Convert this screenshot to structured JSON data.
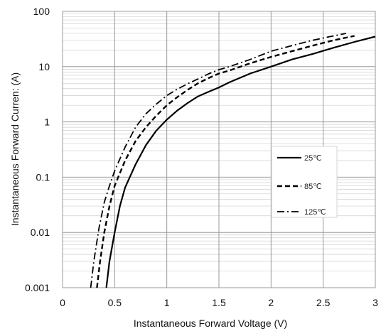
{
  "chart_data": {
    "type": "line",
    "xlabel": "Instantaneous Forward Voltage (V)",
    "ylabel": "Instantaneous Forward Curren: (A)",
    "xlim": [
      0,
      3
    ],
    "ylim": [
      0.001,
      100
    ],
    "yscale": "log",
    "grid": true,
    "legend_position": "right",
    "x_ticks": [
      {
        "value": 0,
        "label": "0"
      },
      {
        "value": 0.5,
        "label": "0.5"
      },
      {
        "value": 1,
        "label": "1"
      },
      {
        "value": 1.5,
        "label": "1.5"
      },
      {
        "value": 2,
        "label": "2"
      },
      {
        "value": 2.5,
        "label": "2.5"
      },
      {
        "value": 3,
        "label": "3"
      }
    ],
    "y_ticks": [
      {
        "value": 0.001,
        "label": "0.001"
      },
      {
        "value": 0.01,
        "label": "0.01"
      },
      {
        "value": 0.1,
        "label": "0.1"
      },
      {
        "value": 1,
        "label": "1"
      },
      {
        "value": 10,
        "label": "10"
      },
      {
        "value": 100,
        "label": "100"
      }
    ],
    "series": [
      {
        "name": "25℃",
        "dash": "solid",
        "color": "#000000",
        "points": [
          [
            0.42,
            0.001
          ],
          [
            0.45,
            0.003
          ],
          [
            0.5,
            0.01
          ],
          [
            0.55,
            0.03
          ],
          [
            0.6,
            0.065
          ],
          [
            0.7,
            0.17
          ],
          [
            0.8,
            0.38
          ],
          [
            0.9,
            0.7
          ],
          [
            1.0,
            1.1
          ],
          [
            1.1,
            1.6
          ],
          [
            1.2,
            2.2
          ],
          [
            1.3,
            2.9
          ],
          [
            1.4,
            3.5
          ],
          [
            1.5,
            4.2
          ],
          [
            1.6,
            5.2
          ],
          [
            1.8,
            7.5
          ],
          [
            2.0,
            10
          ],
          [
            2.2,
            13.5
          ],
          [
            2.4,
            17
          ],
          [
            2.6,
            22
          ],
          [
            2.8,
            28
          ],
          [
            3.0,
            35
          ]
        ]
      },
      {
        "name": "85℃",
        "dash": "dashed",
        "color": "#000000",
        "points": [
          [
            0.33,
            0.001
          ],
          [
            0.36,
            0.003
          ],
          [
            0.4,
            0.01
          ],
          [
            0.45,
            0.03
          ],
          [
            0.5,
            0.07
          ],
          [
            0.6,
            0.2
          ],
          [
            0.7,
            0.45
          ],
          [
            0.8,
            0.8
          ],
          [
            0.9,
            1.3
          ],
          [
            1.0,
            2.0
          ],
          [
            1.1,
            2.8
          ],
          [
            1.2,
            3.8
          ],
          [
            1.3,
            5.0
          ],
          [
            1.4,
            6.2
          ],
          [
            1.5,
            7.5
          ],
          [
            1.6,
            8.5
          ],
          [
            1.8,
            11.5
          ],
          [
            2.0,
            15
          ],
          [
            2.2,
            19
          ],
          [
            2.4,
            24
          ],
          [
            2.6,
            30
          ],
          [
            2.8,
            36
          ]
        ]
      },
      {
        "name": "125℃",
        "dash": "dash-dot",
        "color": "#000000",
        "points": [
          [
            0.27,
            0.001
          ],
          [
            0.3,
            0.003
          ],
          [
            0.35,
            0.012
          ],
          [
            0.4,
            0.035
          ],
          [
            0.45,
            0.07
          ],
          [
            0.5,
            0.13
          ],
          [
            0.6,
            0.35
          ],
          [
            0.7,
            0.8
          ],
          [
            0.8,
            1.4
          ],
          [
            0.9,
            2.1
          ],
          [
            1.0,
            3.0
          ],
          [
            1.1,
            3.9
          ],
          [
            1.2,
            4.9
          ],
          [
            1.3,
            6.0
          ],
          [
            1.4,
            7.4
          ],
          [
            1.5,
            8.8
          ],
          [
            1.6,
            10
          ],
          [
            1.8,
            13.5
          ],
          [
            2.0,
            19
          ],
          [
            2.2,
            24
          ],
          [
            2.4,
            30
          ],
          [
            2.6,
            36
          ],
          [
            2.72,
            40
          ]
        ]
      }
    ]
  }
}
